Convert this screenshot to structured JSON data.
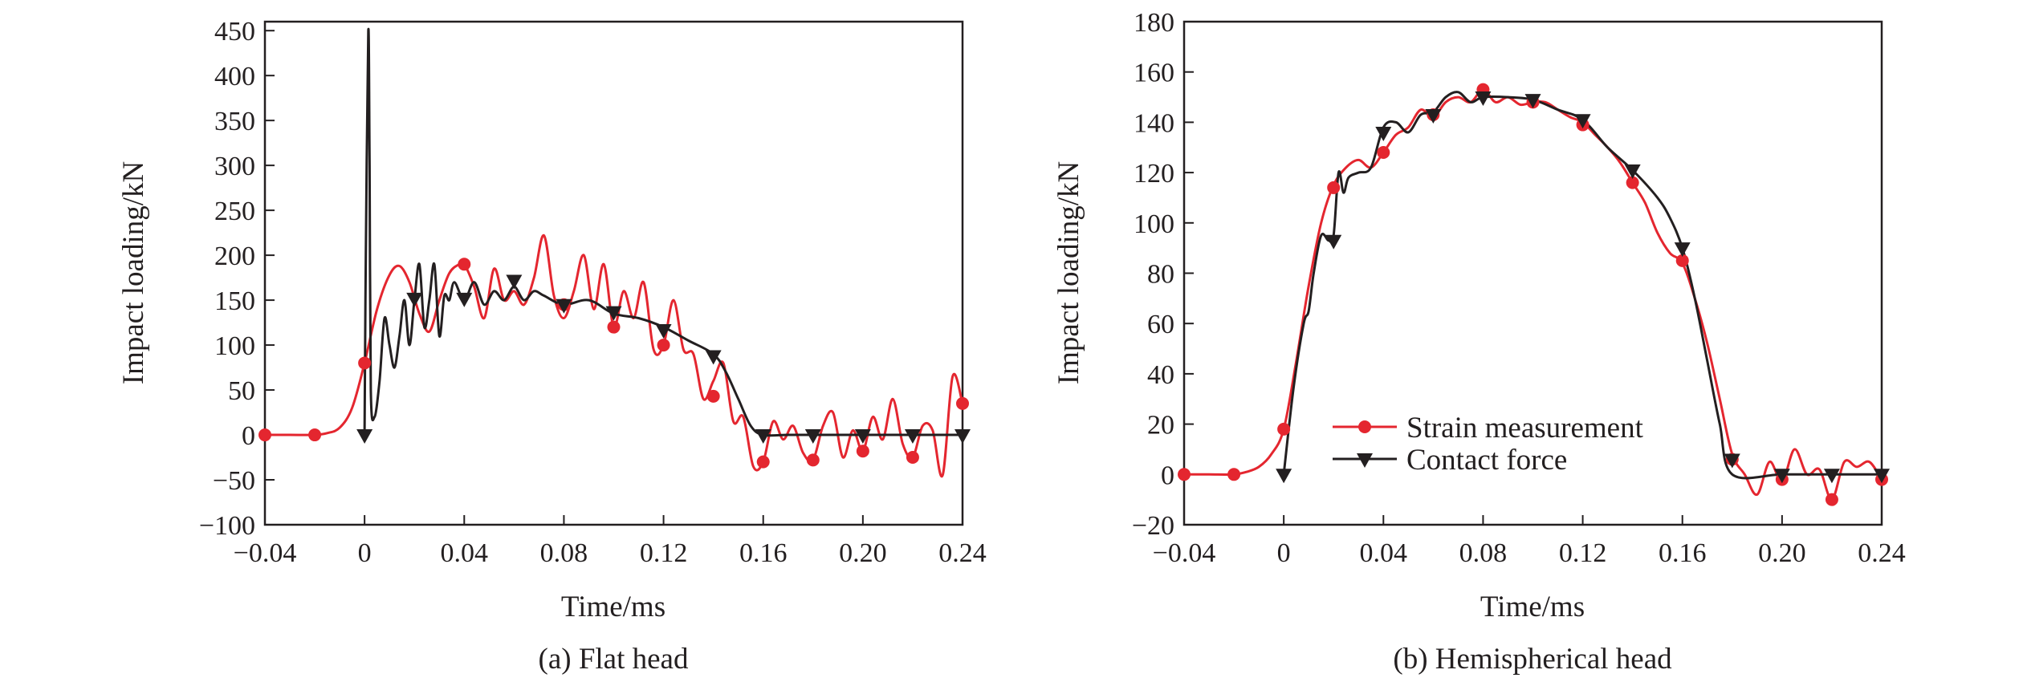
{
  "colors": {
    "strain": "#e4262f",
    "contact": "#231f20",
    "axis": "#231f20"
  },
  "legend": {
    "strain": "Strain measurement",
    "contact": "Contact force"
  },
  "chart_data": [
    {
      "type": "line",
      "caption": "(a) Flat head",
      "xlabel": "Time/ms",
      "ylabel": "Impact loading/kN",
      "xlim": [
        -0.04,
        0.24
      ],
      "ylim": [
        -100,
        460
      ],
      "xticks": [
        -0.04,
        0,
        0.04,
        0.08,
        0.12,
        0.16,
        0.2,
        0.24
      ],
      "xtick_labels": [
        "−0.04",
        "0",
        "0.04",
        "0.08",
        "0.12",
        "0.16",
        "0.20",
        "0.24"
      ],
      "yticks": [
        -100,
        -50,
        0,
        50,
        100,
        150,
        200,
        250,
        300,
        350,
        400,
        450
      ],
      "ytick_labels": [
        "−100",
        "−50",
        "0",
        "50",
        "100",
        "150",
        "200",
        "250",
        "300",
        "350",
        "400",
        "450"
      ],
      "series": [
        {
          "name": "Strain measurement",
          "key": "strain",
          "marker": "circle",
          "x": [
            -0.04,
            -0.03,
            -0.02,
            -0.015,
            -0.01,
            -0.005,
            0,
            0.005,
            0.01,
            0.014,
            0.018,
            0.022,
            0.026,
            0.03,
            0.034,
            0.038,
            0.04,
            0.044,
            0.048,
            0.052,
            0.056,
            0.06,
            0.064,
            0.068,
            0.072,
            0.076,
            0.08,
            0.084,
            0.088,
            0.092,
            0.096,
            0.1,
            0.104,
            0.108,
            0.112,
            0.116,
            0.12,
            0.124,
            0.128,
            0.132,
            0.136,
            0.14,
            0.144,
            0.148,
            0.152,
            0.156,
            0.16,
            0.164,
            0.168,
            0.172,
            0.176,
            0.18,
            0.184,
            0.188,
            0.192,
            0.196,
            0.2,
            0.204,
            0.208,
            0.212,
            0.216,
            0.22,
            0.224,
            0.228,
            0.232,
            0.236,
            0.24
          ],
          "y": [
            0,
            0,
            0,
            2,
            8,
            30,
            80,
            140,
            178,
            188,
            170,
            135,
            115,
            150,
            180,
            190,
            190,
            165,
            130,
            185,
            150,
            160,
            145,
            175,
            222,
            155,
            130,
            160,
            200,
            140,
            190,
            120,
            160,
            130,
            170,
            95,
            100,
            150,
            95,
            90,
            40,
            60,
            80,
            15,
            20,
            -35,
            -30,
            15,
            -5,
            10,
            -20,
            -28,
            10,
            25,
            -25,
            5,
            -18,
            20,
            -5,
            40,
            -10,
            -25,
            10,
            5,
            -45,
            65,
            35
          ],
          "markers_x": [
            -0.04,
            -0.02,
            0,
            0.04,
            0.08,
            0.1,
            0.12,
            0.14,
            0.16,
            0.18,
            0.2,
            0.22,
            0.24
          ],
          "markers_y": [
            0,
            0,
            80,
            190,
            145,
            120,
            100,
            43,
            -30,
            -28,
            -18,
            -25,
            35
          ]
        },
        {
          "name": "Contact force",
          "key": "contact",
          "marker": "triangle-down",
          "x": [
            0,
            0.0005,
            0.0015,
            0.002,
            0.0025,
            0.004,
            0.006,
            0.008,
            0.01,
            0.012,
            0.014,
            0.016,
            0.018,
            0.02,
            0.022,
            0.024,
            0.026,
            0.028,
            0.03,
            0.032,
            0.034,
            0.036,
            0.04,
            0.044,
            0.048,
            0.052,
            0.056,
            0.06,
            0.064,
            0.068,
            0.072,
            0.08,
            0.09,
            0.1,
            0.11,
            0.12,
            0.13,
            0.14,
            0.145,
            0.15,
            0.155,
            0.16,
            0.17,
            0.18,
            0.2,
            0.22,
            0.24
          ],
          "y": [
            0,
            200,
            450,
            300,
            50,
            20,
            60,
            130,
            100,
            75,
            110,
            150,
            100,
            150,
            190,
            120,
            150,
            190,
            110,
            155,
            150,
            170,
            150,
            170,
            145,
            160,
            150,
            165,
            150,
            160,
            155,
            145,
            150,
            135,
            130,
            120,
            105,
            90,
            70,
            40,
            10,
            0,
            0,
            0,
            0,
            0,
            0
          ],
          "markers_x": [
            0,
            0.02,
            0.04,
            0.06,
            0.08,
            0.1,
            0.12,
            0.14,
            0.16,
            0.18,
            0.2,
            0.22,
            0.24
          ],
          "markers_y": [
            0,
            152,
            152,
            172,
            145,
            137,
            117,
            88,
            0,
            0,
            0,
            0,
            0
          ]
        }
      ]
    },
    {
      "type": "line",
      "caption": "(b) Hemispherical head",
      "xlabel": "Time/ms",
      "ylabel": "Impact loading/kN",
      "xlim": [
        -0.04,
        0.24
      ],
      "ylim": [
        -20,
        180
      ],
      "xticks": [
        -0.04,
        0,
        0.04,
        0.08,
        0.12,
        0.16,
        0.2,
        0.24
      ],
      "xtick_labels": [
        "−0.04",
        "0",
        "0.04",
        "0.08",
        "0.12",
        "0.16",
        "0.20",
        "0.24"
      ],
      "yticks": [
        -20,
        0,
        20,
        40,
        60,
        80,
        100,
        120,
        140,
        160,
        180
      ],
      "ytick_labels": [
        "−20",
        "0",
        "20",
        "40",
        "60",
        "80",
        "100",
        "120",
        "140",
        "160",
        "180"
      ],
      "series": [
        {
          "name": "Strain measurement",
          "key": "strain",
          "marker": "circle",
          "x": [
            -0.04,
            -0.03,
            -0.02,
            -0.015,
            -0.01,
            -0.005,
            0,
            0.005,
            0.01,
            0.015,
            0.02,
            0.025,
            0.03,
            0.035,
            0.04,
            0.045,
            0.05,
            0.055,
            0.06,
            0.065,
            0.07,
            0.075,
            0.08,
            0.085,
            0.09,
            0.095,
            0.1,
            0.105,
            0.11,
            0.115,
            0.12,
            0.125,
            0.13,
            0.135,
            0.14,
            0.145,
            0.15,
            0.155,
            0.16,
            0.165,
            0.17,
            0.175,
            0.18,
            0.185,
            0.19,
            0.195,
            0.2,
            0.205,
            0.21,
            0.215,
            0.22,
            0.225,
            0.23,
            0.235,
            0.24
          ],
          "y": [
            0,
            0,
            0,
            1,
            3,
            8,
            18,
            45,
            75,
            100,
            115,
            122,
            125,
            122,
            128,
            135,
            138,
            145,
            142,
            148,
            150,
            148,
            153,
            148,
            150,
            147,
            148,
            148,
            145,
            142,
            140,
            135,
            130,
            124,
            116,
            108,
            96,
            88,
            84,
            70,
            52,
            30,
            8,
            0,
            -8,
            5,
            -3,
            10,
            0,
            2,
            -10,
            5,
            3,
            5,
            -2
          ],
          "markers_x": [
            -0.04,
            -0.02,
            0,
            0.02,
            0.04,
            0.06,
            0.08,
            0.1,
            0.12,
            0.14,
            0.16,
            0.18,
            0.2,
            0.22,
            0.24
          ],
          "markers_y": [
            0,
            0,
            18,
            114,
            128,
            143,
            153,
            148,
            139,
            116,
            85,
            6,
            -2,
            -10,
            -2
          ]
        },
        {
          "name": "Contact force",
          "key": "contact",
          "marker": "triangle-down",
          "x": [
            0,
            0.004,
            0.008,
            0.01,
            0.012,
            0.015,
            0.018,
            0.02,
            0.022,
            0.024,
            0.026,
            0.03,
            0.035,
            0.04,
            0.045,
            0.05,
            0.055,
            0.06,
            0.065,
            0.07,
            0.075,
            0.08,
            0.09,
            0.1,
            0.11,
            0.12,
            0.13,
            0.14,
            0.15,
            0.155,
            0.16,
            0.165,
            0.17,
            0.175,
            0.18,
            0.2,
            0.22,
            0.24
          ],
          "y": [
            0,
            35,
            60,
            65,
            80,
            95,
            93,
            95,
            120,
            112,
            118,
            120,
            122,
            138,
            140,
            136,
            143,
            144,
            150,
            152,
            148,
            150,
            150,
            149,
            145,
            141,
            130,
            121,
            110,
            102,
            90,
            70,
            45,
            20,
            0,
            0,
            0,
            0
          ],
          "markers_x": [
            0,
            0.02,
            0.04,
            0.06,
            0.08,
            0.1,
            0.12,
            0.14,
            0.16,
            0.18,
            0.2,
            0.22,
            0.24
          ],
          "markers_y": [
            0,
            93,
            136,
            143,
            150,
            149,
            141,
            121,
            90,
            6,
            0,
            0,
            0
          ]
        }
      ]
    }
  ]
}
